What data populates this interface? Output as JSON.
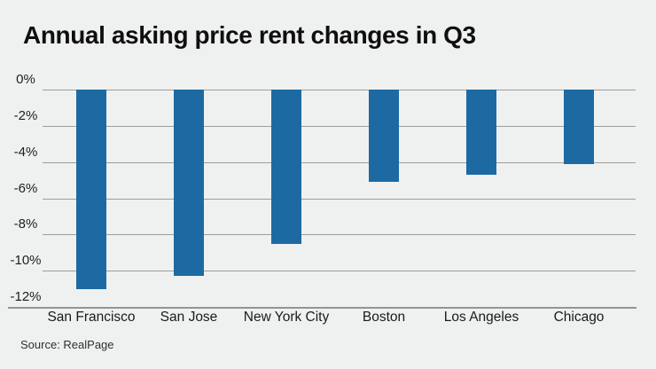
{
  "header": {
    "title": "Annual asking price rent changes in Q3"
  },
  "footer": {
    "source_label": "Source: RealPage"
  },
  "colors": {
    "background": "#eff1f0",
    "bar": "#1d6aa3",
    "gridline": "#9b9e9c",
    "axis_line": "#929593",
    "title_text": "#0f0f0f",
    "label_text": "#1a1a1a"
  },
  "chart_data": {
    "type": "bar",
    "title": "Annual asking price rent changes in Q3",
    "categories": [
      "San Francisco",
      "San Jose",
      "New York City",
      "Boston",
      "Los Angeles",
      "Chicago"
    ],
    "values": [
      -11.0,
      -10.3,
      -8.5,
      -5.1,
      -4.7,
      -4.1
    ],
    "unit": "%",
    "xlabel": "",
    "ylabel": "",
    "ylim": [
      0,
      -12
    ],
    "yticks": [
      0,
      -2,
      -4,
      -6,
      -8,
      -10,
      -12
    ],
    "ytick_labels": [
      "0%",
      "-2%",
      "-4%",
      "-6%",
      "-8%",
      "-10%",
      "-12%"
    ],
    "grid": "horizontal-only",
    "legend": "none",
    "bar_color": "#1d6aa3",
    "source": "Source: RealPage"
  }
}
